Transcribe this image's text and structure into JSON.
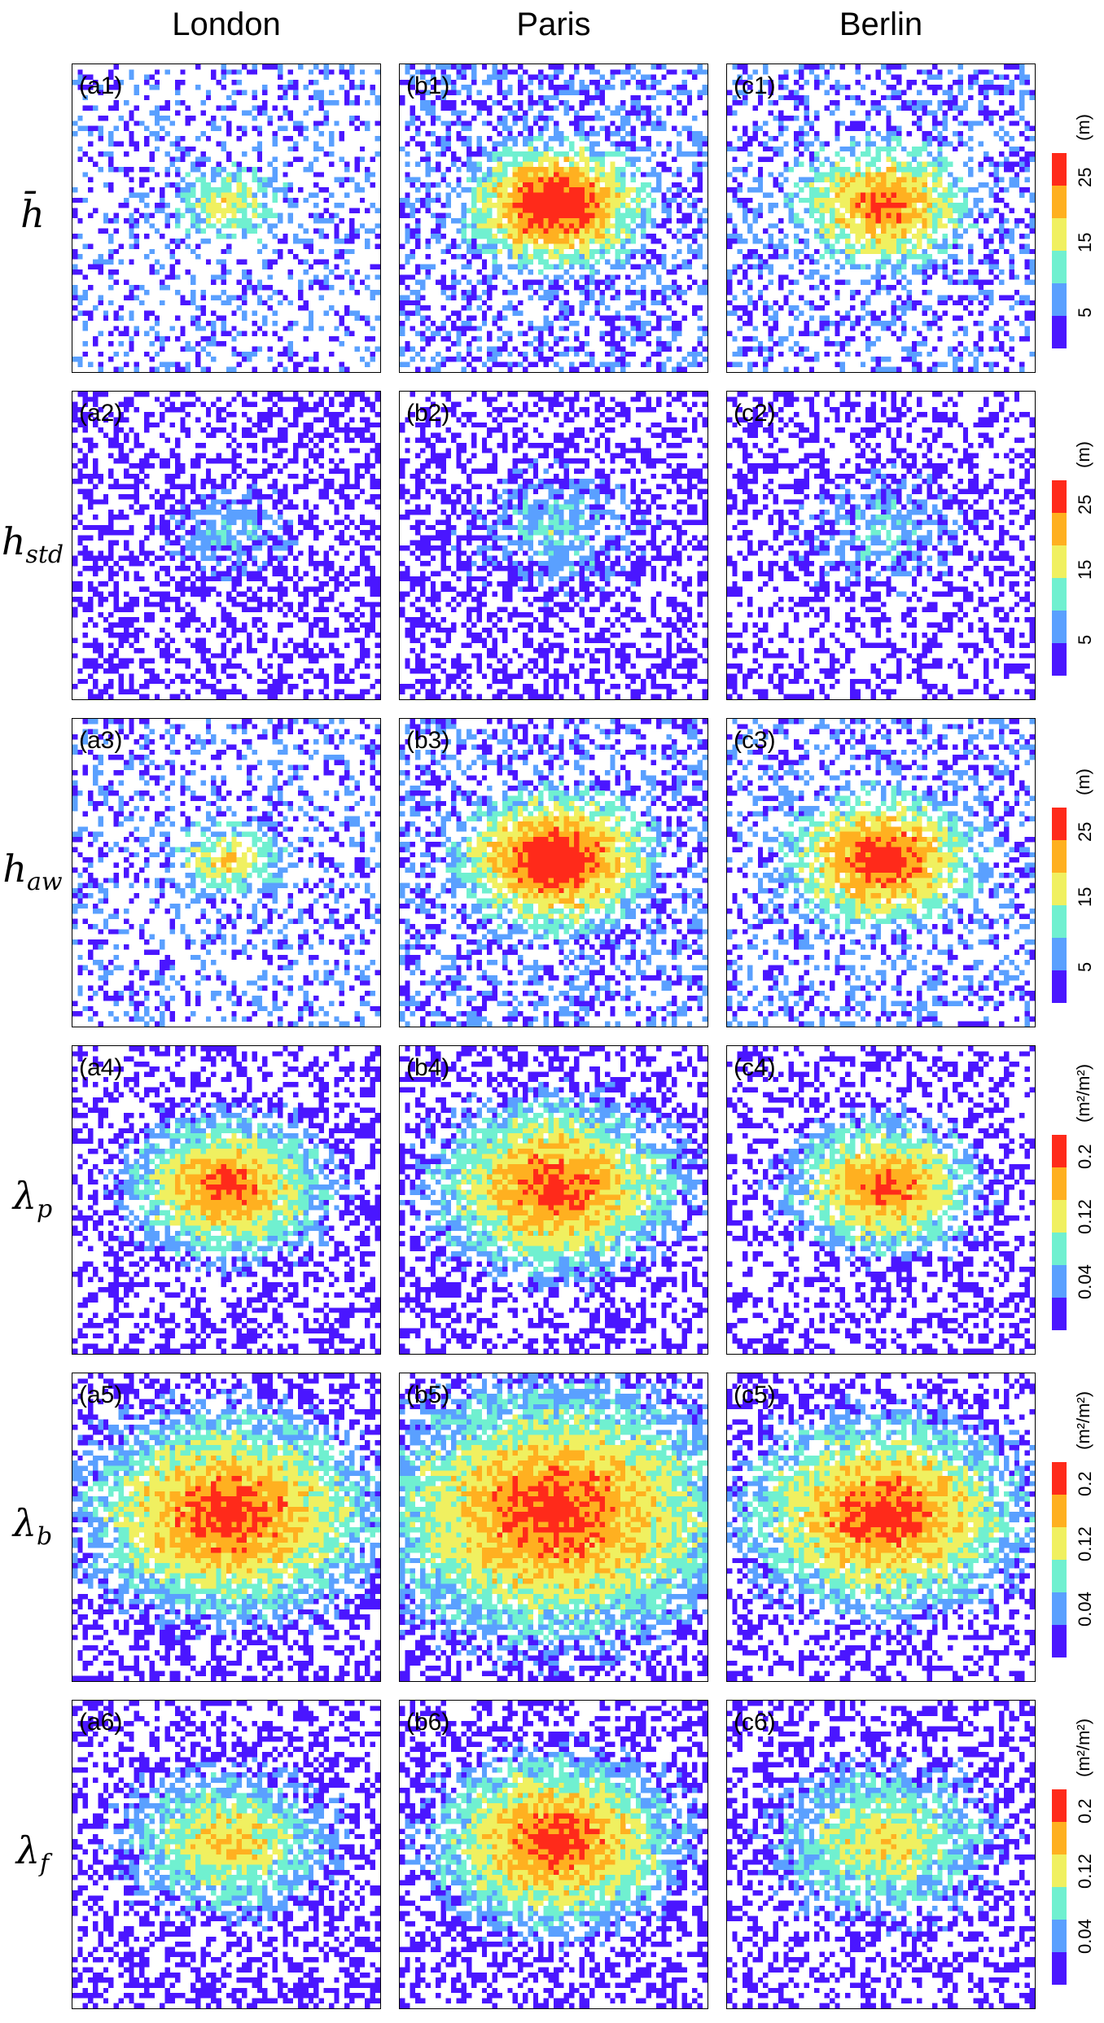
{
  "columns": [
    "London",
    "Paris",
    "Berlin"
  ],
  "rows": [
    {
      "symbol": "h̄",
      "sub": "",
      "unit": "(m)",
      "ticks": [
        "5",
        "15",
        "25"
      ]
    },
    {
      "symbol": "h",
      "sub": "std",
      "unit": "(m)",
      "ticks": [
        "5",
        "15",
        "25"
      ]
    },
    {
      "symbol": "h",
      "sub": "aw",
      "unit": "(m)",
      "ticks": [
        "5",
        "15",
        "25"
      ]
    },
    {
      "symbol": "λ",
      "sub": "p",
      "unit": "(m²/m²)",
      "ticks": [
        "0.04",
        "0.12",
        "0.2"
      ]
    },
    {
      "symbol": "λ",
      "sub": "b",
      "unit": "(m²/m²)",
      "ticks": [
        "0.04",
        "0.12",
        "0.2"
      ]
    },
    {
      "symbol": "λ",
      "sub": "f",
      "unit": "(m²/m²)",
      "ticks": [
        "0.04",
        "0.12",
        "0.2"
      ]
    }
  ],
  "panel_labels": [
    [
      "(a1)",
      "(b1)",
      "(c1)"
    ],
    [
      "(a2)",
      "(b2)",
      "(c2)"
    ],
    [
      "(a3)",
      "(b3)",
      "(c3)"
    ],
    [
      "(a4)",
      "(b4)",
      "(c4)"
    ],
    [
      "(a5)",
      "(b5)",
      "(c5)"
    ],
    [
      "(a6)",
      "(b6)",
      "(c6)"
    ]
  ],
  "colors": {
    "scale": [
      "#4a16ff",
      "#5aa0ff",
      "#70f0d0",
      "#f0f060",
      "#ffb020",
      "#ff2a1a"
    ],
    "empty": "#ffffff"
  },
  "chart_data": {
    "type": "heatmap",
    "grid_cells": 60,
    "color_bins": 6,
    "note_scale": "binned color scale, 0=low (purple) to 5=high (red)",
    "maps": [
      [
        {
          "core": 0.45,
          "spread": 0.18,
          "fill": 0.55,
          "base": 1
        },
        {
          "core": 0.95,
          "spread": 0.28,
          "fill": 0.8,
          "base": 1
        },
        {
          "core": 0.75,
          "spread": 0.28,
          "fill": 0.7,
          "base": 1
        }
      ],
      [
        {
          "core": 0.35,
          "spread": 0.22,
          "fill": 0.75,
          "base": 0
        },
        {
          "core": 0.4,
          "spread": 0.3,
          "fill": 0.75,
          "base": 0
        },
        {
          "core": 0.35,
          "spread": 0.3,
          "fill": 0.65,
          "base": 0
        }
      ],
      [
        {
          "core": 0.5,
          "spread": 0.18,
          "fill": 0.6,
          "base": 1
        },
        {
          "core": 0.95,
          "spread": 0.3,
          "fill": 0.82,
          "base": 1
        },
        {
          "core": 0.85,
          "spread": 0.3,
          "fill": 0.72,
          "base": 1
        }
      ],
      [
        {
          "core": 0.95,
          "spread": 0.35,
          "fill": 0.7,
          "base": 0
        },
        {
          "core": 1.0,
          "spread": 0.42,
          "fill": 0.72,
          "base": 0
        },
        {
          "core": 0.95,
          "spread": 0.33,
          "fill": 0.62,
          "base": 0
        }
      ],
      [
        {
          "core": 1.0,
          "spread": 0.5,
          "fill": 0.7,
          "base": 0
        },
        {
          "core": 1.0,
          "spread": 0.62,
          "fill": 0.75,
          "base": 0
        },
        {
          "core": 1.0,
          "spread": 0.48,
          "fill": 0.62,
          "base": 0
        }
      ],
      [
        {
          "core": 0.75,
          "spread": 0.35,
          "fill": 0.72,
          "base": 0
        },
        {
          "core": 1.0,
          "spread": 0.42,
          "fill": 0.75,
          "base": 0
        },
        {
          "core": 0.7,
          "spread": 0.38,
          "fill": 0.7,
          "base": 0
        }
      ]
    ]
  }
}
